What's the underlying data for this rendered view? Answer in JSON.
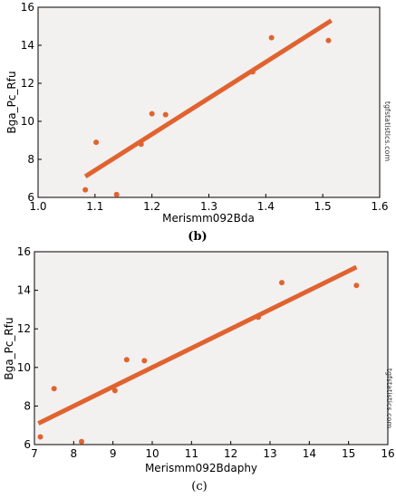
{
  "chart_data": [
    {
      "type": "scatter",
      "caption": "(b)",
      "xlabel": "Merismm092Bda",
      "ylabel": "Bga_Pc_Rfu",
      "watermark": "tgfstatistics.com",
      "xlim": [
        1.0,
        1.6
      ],
      "ylim": [
        6,
        16
      ],
      "xticks": [
        "1.0",
        "1.1",
        "1.2",
        "1.3",
        "1.4",
        "1.5",
        "1.6"
      ],
      "yticks": [
        "6",
        "8",
        "10",
        "12",
        "14",
        "16"
      ],
      "grid": false,
      "points": [
        {
          "x": 1.083,
          "y": 6.4
        },
        {
          "x": 1.102,
          "y": 8.9
        },
        {
          "x": 1.138,
          "y": 6.15
        },
        {
          "x": 1.181,
          "y": 8.8
        },
        {
          "x": 1.2,
          "y": 10.4
        },
        {
          "x": 1.224,
          "y": 10.35
        },
        {
          "x": 1.377,
          "y": 12.6
        },
        {
          "x": 1.41,
          "y": 14.4
        },
        {
          "x": 1.51,
          "y": 14.25
        }
      ],
      "fit_line": [
        {
          "x": 1.083,
          "y": 7.1
        },
        {
          "x": 1.515,
          "y": 15.3
        }
      ],
      "colors": {
        "points": "#e0632f",
        "line": "#e0632f",
        "background": "#f3f0f0"
      }
    },
    {
      "type": "scatter",
      "caption": "(c)",
      "xlabel": "Merismm092Bdaphy",
      "ylabel": "Bga_Pc_Rfu",
      "watermark": "tgfstatistics.com",
      "xlim": [
        7,
        16
      ],
      "ylim": [
        6,
        16
      ],
      "xticks": [
        "7",
        "8",
        "9",
        "10",
        "11",
        "12",
        "13",
        "14",
        "15",
        "16"
      ],
      "yticks": [
        "6",
        "8",
        "10",
        "12",
        "14",
        "16"
      ],
      "grid": false,
      "points": [
        {
          "x": 7.15,
          "y": 6.4
        },
        {
          "x": 7.5,
          "y": 8.9
        },
        {
          "x": 8.2,
          "y": 6.15
        },
        {
          "x": 9.05,
          "y": 8.8
        },
        {
          "x": 9.35,
          "y": 10.4
        },
        {
          "x": 9.8,
          "y": 10.35
        },
        {
          "x": 12.7,
          "y": 12.6
        },
        {
          "x": 13.3,
          "y": 14.4
        },
        {
          "x": 15.2,
          "y": 14.25
        }
      ],
      "fit_line": [
        {
          "x": 7.1,
          "y": 7.1
        },
        {
          "x": 15.2,
          "y": 15.2
        }
      ],
      "colors": {
        "points": "#e0632f",
        "line": "#e0632f",
        "background": "#f3f0f0"
      }
    }
  ]
}
